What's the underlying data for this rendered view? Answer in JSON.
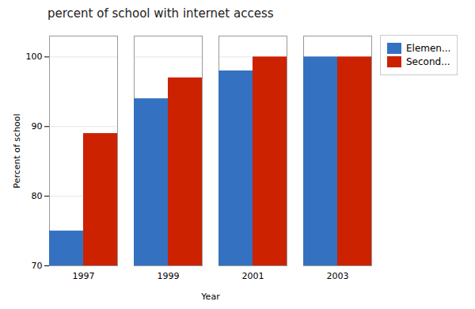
{
  "chart_data": {
    "type": "bar",
    "title": "percent of school with internet access",
    "xlabel": "Year",
    "ylabel": "Percent of school",
    "categories": [
      "1997",
      "1999",
      "2001",
      "2003"
    ],
    "series": [
      {
        "name": "Elemen...",
        "color": "#3471C1",
        "values": [
          75,
          94,
          98,
          100
        ]
      },
      {
        "name": "Second...",
        "color": "#CC2200",
        "values": [
          89,
          97,
          100,
          100
        ]
      }
    ],
    "ylim": [
      70,
      103
    ],
    "yticks": [
      70,
      80,
      90,
      100
    ],
    "grid": true,
    "legend": "right"
  }
}
